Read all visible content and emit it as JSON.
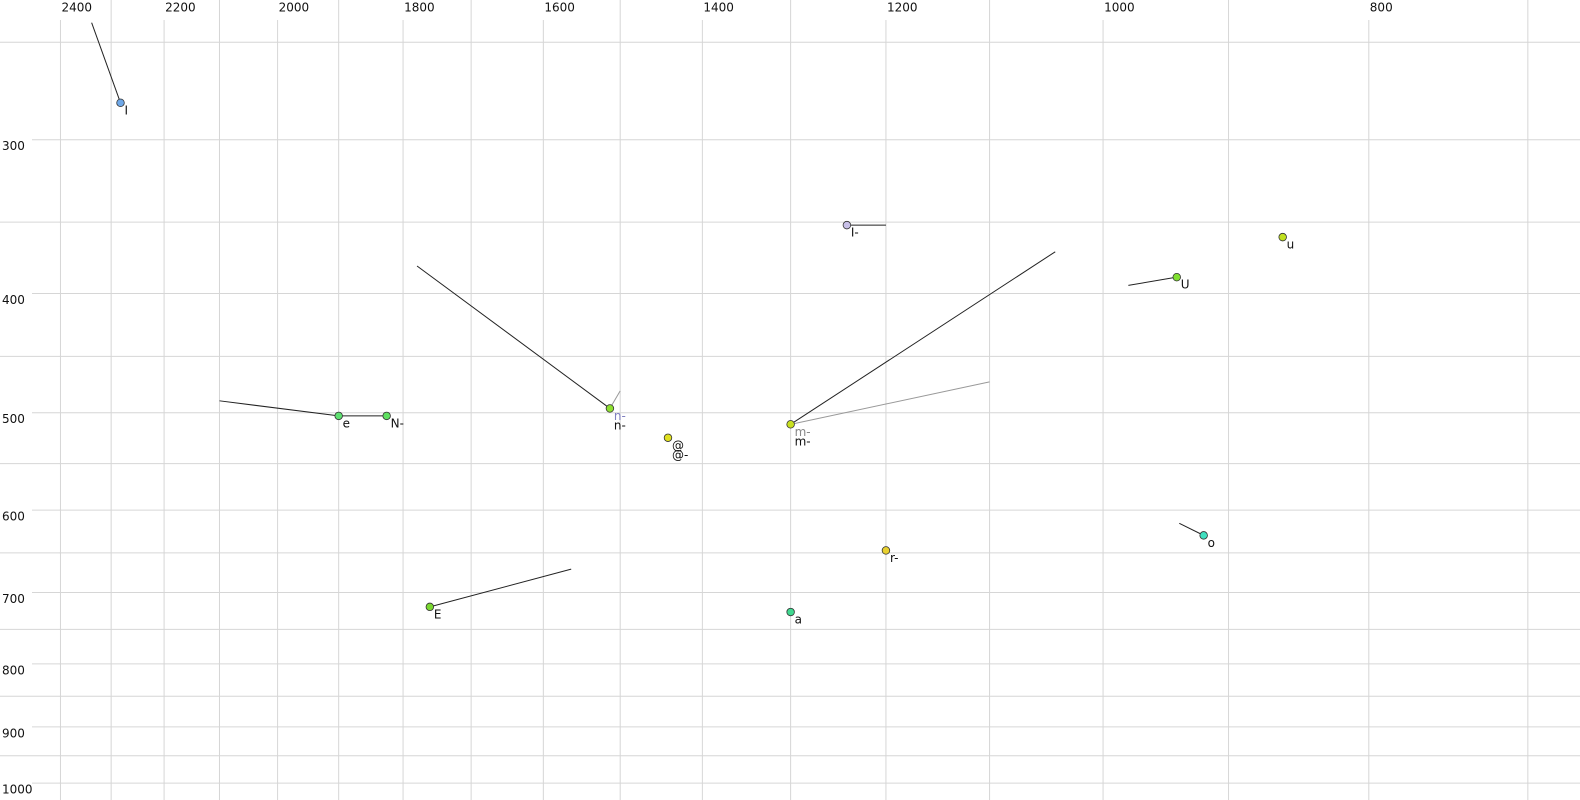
{
  "chart_data": {
    "type": "scatter",
    "log": true,
    "grid": true,
    "xlim": [
      2525,
      670
    ],
    "ylim": [
      231,
      1032
    ],
    "xticks": [
      2400,
      2200,
      2000,
      1800,
      1600,
      1400,
      1200,
      1000,
      800
    ],
    "xminor": [
      2300,
      2100,
      1900,
      1700,
      1500,
      1300,
      1100,
      900,
      700
    ],
    "yticks": [
      300,
      400,
      500,
      600,
      700,
      800,
      900,
      1000
    ],
    "yminor": [
      250,
      350,
      450,
      550,
      650,
      750,
      850,
      950
    ],
    "points": [
      {
        "x": 2282,
        "y": 280,
        "color": "#6fa8e8",
        "labels": [
          {
            "text": "I",
            "color": "#111"
          }
        ],
        "lines": [
          {
            "x": 2338,
            "y": 241,
            "color": "#222"
          }
        ]
      },
      {
        "x": 1900,
        "y": 503,
        "color": "#5ee070",
        "labels": [
          {
            "text": "e",
            "color": "#111"
          }
        ],
        "lines": [
          {
            "x": 2100,
            "y": 489,
            "color": "#222"
          }
        ]
      },
      {
        "x": 1825,
        "y": 503,
        "color": "#5ee060",
        "labels": [
          {
            "text": "N-",
            "color": "#111"
          }
        ],
        "lines": [
          {
            "x": 1900,
            "y": 503,
            "color": "#222"
          }
        ]
      },
      {
        "x": 1760,
        "y": 719,
        "color": "#7ad830",
        "labels": [
          {
            "text": "E",
            "color": "#111"
          }
        ],
        "lines": [
          {
            "x": 1563,
            "y": 670,
            "color": "#222"
          }
        ]
      },
      {
        "x": 1513,
        "y": 496,
        "color": "#8de030",
        "labels": [
          {
            "text": "n-",
            "color": "#8080c0"
          },
          {
            "text": "n-",
            "color": "#111"
          }
        ],
        "lines": [
          {
            "x": 1779,
            "y": 380,
            "color": "#222"
          },
          {
            "x": 1500,
            "y": 480,
            "color": "#999"
          }
        ]
      },
      {
        "x": 1441,
        "y": 524,
        "color": "#e0e020",
        "labels": [
          {
            "text": "@",
            "color": "#111"
          },
          {
            "text": "@-",
            "color": "#111"
          }
        ],
        "lines": []
      },
      {
        "x": 1300,
        "y": 511,
        "color": "#c8e020",
        "labels": [
          {
            "text": "m-",
            "color": "#888"
          },
          {
            "text": "m-",
            "color": "#111"
          }
        ],
        "lines": [
          {
            "x": 1041,
            "y": 370,
            "color": "#222"
          },
          {
            "x": 1100,
            "y": 472,
            "color": "#999"
          }
        ]
      },
      {
        "x": 1240,
        "y": 352,
        "color": "#c8c0e8",
        "labels": [
          {
            "text": "I-",
            "color": "#111"
          }
        ],
        "lines": [
          {
            "x": 1200,
            "y": 352,
            "color": "#222"
          }
        ]
      },
      {
        "x": 1200,
        "y": 647,
        "color": "#e8d030",
        "labels": [
          {
            "text": "r-",
            "color": "#111"
          }
        ],
        "lines": []
      },
      {
        "x": 1300,
        "y": 726,
        "color": "#40d890",
        "labels": [
          {
            "text": "a",
            "color": "#111"
          }
        ],
        "lines": []
      },
      {
        "x": 940,
        "y": 388,
        "color": "#80e030",
        "labels": [
          {
            "text": "U",
            "color": "#111"
          }
        ],
        "lines": [
          {
            "x": 979,
            "y": 394,
            "color": "#222"
          }
        ]
      },
      {
        "x": 860,
        "y": 360,
        "color": "#c0e020",
        "labels": [
          {
            "text": "u",
            "color": "#111"
          }
        ],
        "lines": []
      },
      {
        "x": 919,
        "y": 629,
        "color": "#40e0c0",
        "labels": [
          {
            "text": "o",
            "color": "#111"
          }
        ],
        "lines": [
          {
            "x": 938,
            "y": 615,
            "color": "#222"
          }
        ]
      }
    ]
  }
}
